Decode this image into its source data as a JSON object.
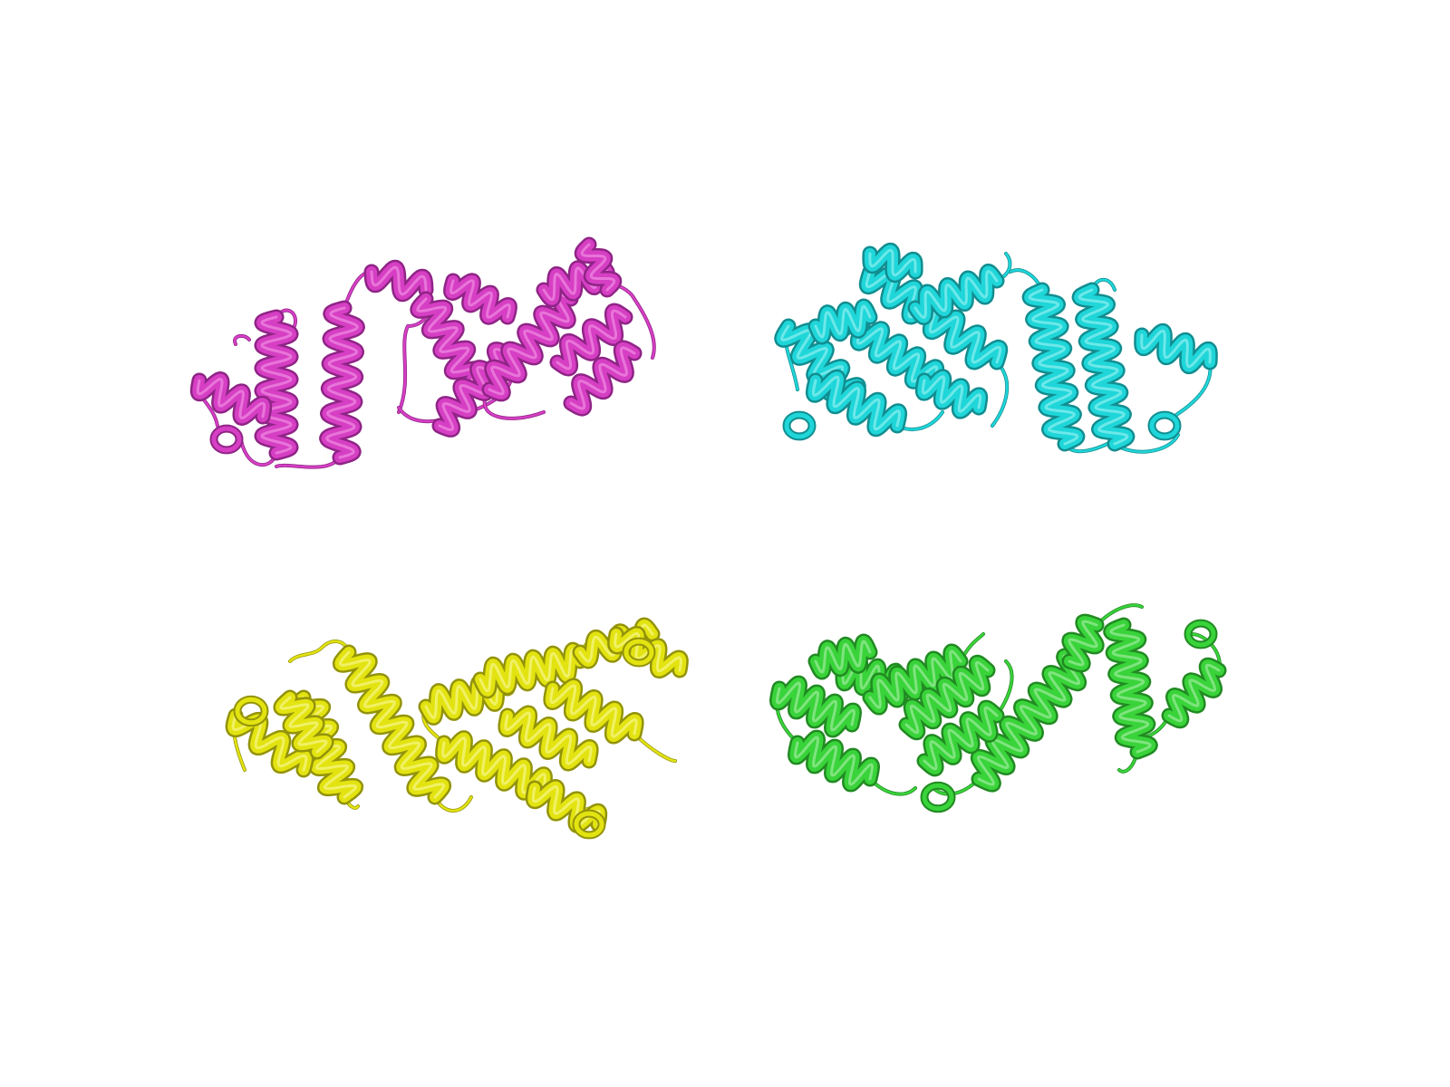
{
  "viewer": {
    "background": "#ffffff"
  },
  "molecules": [
    {
      "name": "magenta-chain",
      "color": "#d63fc4",
      "dark": "#8f2486",
      "light": "#ef8de3"
    },
    {
      "name": "cyan-chain",
      "color": "#1fd6d9",
      "dark": "#128d90",
      "light": "#8ff0f0"
    },
    {
      "name": "yellow-chain",
      "color": "#e3e311",
      "dark": "#93930b",
      "light": "#f6f68a"
    },
    {
      "name": "green-chain",
      "color": "#39d33a",
      "dark": "#218a22",
      "light": "#9ceb9b"
    }
  ]
}
